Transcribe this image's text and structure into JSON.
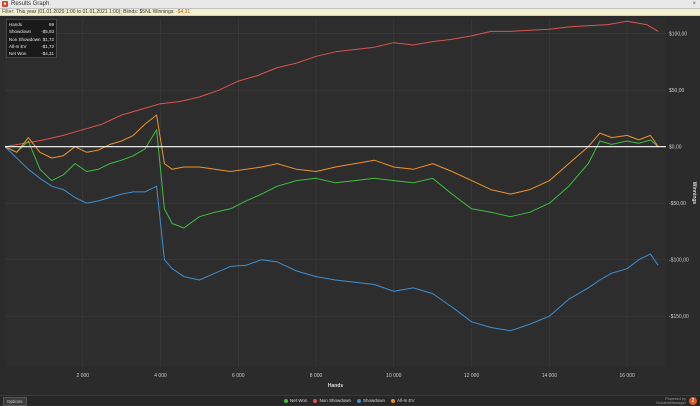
{
  "window": {
    "title": "Results Graph",
    "close_glyph": "×"
  },
  "filter": {
    "label": "Filter:",
    "text": "This year (01.01.2020 1:00 to 01.01.2021 1:00); Blinds: $5NL",
    "winnings_label": "Winnings:",
    "winnings_value": "-$4,31"
  },
  "stats": [
    {
      "label": "Hands",
      "value": "69"
    },
    {
      "label": "Showdown",
      "value": "-$5,93"
    },
    {
      "label": "Non Showdown",
      "value": "$1,72"
    },
    {
      "label": "All-In EV",
      "value": "-$1,72"
    },
    {
      "label": "Net Won",
      "value": "-$4,31"
    }
  ],
  "bottom": {
    "options_label": "Options",
    "brand_top": "Powered by",
    "brand_name": "HoldemManager",
    "brand_badge": "2"
  },
  "colors": {
    "net_won": "#3fbf3f",
    "non_showdown": "#d9534f",
    "showdown": "#3f8fd0",
    "all_in_ev": "#f0922b",
    "zero_line": "#ffffff",
    "grid": "#3c3c3c"
  },
  "chart_data": {
    "type": "line",
    "xlabel": "Hands",
    "ylabel": "Winnings",
    "xlim": [
      0,
      17000
    ],
    "ylim": [
      -195,
      113
    ],
    "x_ticks": [
      2000,
      4000,
      6000,
      8000,
      10000,
      12000,
      14000,
      16000
    ],
    "x_tick_labels": [
      "2 000",
      "4 000",
      "6 000",
      "8 000",
      "10 000",
      "12 000",
      "14 000",
      "16 000"
    ],
    "y_ticks": [
      100,
      50,
      0,
      -50,
      -100,
      -150
    ],
    "y_tick_labels": [
      "$100,00",
      "$50,00",
      "$0,00",
      "-$50,00",
      "-$100,00",
      "-$150,00"
    ],
    "grid": true,
    "legend_position": "bottom",
    "series": [
      {
        "name": "Net Won",
        "color_key": "net_won",
        "x": [
          0,
          300,
          600,
          900,
          1200,
          1500,
          1800,
          2100,
          2400,
          2700,
          3000,
          3300,
          3600,
          3900,
          4100,
          4300,
          4600,
          5000,
          5400,
          5800,
          6200,
          6600,
          7000,
          7500,
          8000,
          8500,
          9000,
          9500,
          10000,
          10500,
          11000,
          11500,
          12000,
          12500,
          13000,
          13500,
          14000,
          14500,
          15000,
          15300,
          15600,
          16000,
          16300,
          16600,
          16800
        ],
        "y": [
          0,
          -5,
          5,
          -20,
          -30,
          -25,
          -15,
          -22,
          -20,
          -15,
          -12,
          -8,
          -2,
          15,
          -55,
          -68,
          -72,
          -62,
          -58,
          -55,
          -48,
          -42,
          -35,
          -30,
          -28,
          -32,
          -30,
          -28,
          -30,
          -32,
          -28,
          -42,
          -55,
          -58,
          -62,
          -58,
          -50,
          -35,
          -15,
          5,
          2,
          5,
          3,
          6,
          0
        ]
      },
      {
        "name": "Non Showdown",
        "color_key": "non_showdown",
        "x": [
          0,
          500,
          1000,
          1500,
          2000,
          2500,
          3000,
          3500,
          4000,
          4500,
          5000,
          5500,
          6000,
          6500,
          7000,
          7500,
          8000,
          8500,
          9000,
          9500,
          10000,
          10500,
          11000,
          11500,
          12000,
          12500,
          13000,
          13500,
          14000,
          14500,
          15000,
          15500,
          16000,
          16500,
          16800
        ],
        "y": [
          0,
          3,
          6,
          10,
          15,
          20,
          28,
          33,
          38,
          40,
          44,
          50,
          58,
          63,
          70,
          74,
          80,
          84,
          86,
          88,
          92,
          90,
          93,
          95,
          98,
          102,
          102,
          103,
          104,
          106,
          107,
          108,
          111,
          108,
          102
        ]
      },
      {
        "name": "Showdown",
        "color_key": "showdown",
        "x": [
          0,
          300,
          600,
          900,
          1200,
          1500,
          1800,
          2100,
          2400,
          2700,
          3000,
          3300,
          3600,
          3900,
          4100,
          4300,
          4600,
          5000,
          5400,
          5800,
          6200,
          6600,
          7000,
          7500,
          8000,
          8500,
          9000,
          9500,
          10000,
          10500,
          11000,
          11500,
          12000,
          12500,
          13000,
          13500,
          14000,
          14500,
          15000,
          15300,
          15600,
          16000,
          16300,
          16600,
          16800
        ],
        "y": [
          0,
          -10,
          -20,
          -28,
          -35,
          -38,
          -45,
          -50,
          -48,
          -45,
          -42,
          -40,
          -40,
          -35,
          -100,
          -108,
          -115,
          -118,
          -112,
          -106,
          -105,
          -100,
          -102,
          -110,
          -115,
          -118,
          -120,
          -122,
          -128,
          -125,
          -130,
          -142,
          -155,
          -160,
          -163,
          -157,
          -150,
          -135,
          -125,
          -118,
          -112,
          -108,
          -100,
          -95,
          -105
        ]
      },
      {
        "name": "All-In EV",
        "color_key": "all_in_ev",
        "x": [
          0,
          300,
          600,
          900,
          1200,
          1500,
          1800,
          2100,
          2400,
          2700,
          3000,
          3300,
          3600,
          3900,
          4100,
          4300,
          4600,
          5000,
          5400,
          5800,
          6200,
          6600,
          7000,
          7500,
          8000,
          8500,
          9000,
          9500,
          10000,
          10500,
          11000,
          11500,
          12000,
          12500,
          13000,
          13500,
          14000,
          14500,
          15000,
          15300,
          15600,
          16000,
          16300,
          16600,
          16800
        ],
        "y": [
          0,
          -5,
          8,
          -5,
          -10,
          -8,
          0,
          -5,
          -3,
          2,
          5,
          10,
          20,
          28,
          -15,
          -20,
          -18,
          -18,
          -20,
          -22,
          -20,
          -18,
          -15,
          -20,
          -22,
          -18,
          -15,
          -12,
          -18,
          -20,
          -15,
          -22,
          -30,
          -38,
          -42,
          -38,
          -30,
          -15,
          0,
          12,
          8,
          10,
          6,
          10,
          0
        ]
      }
    ]
  }
}
